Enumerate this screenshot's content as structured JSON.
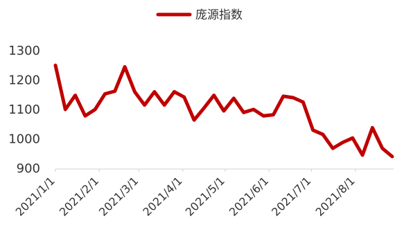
{
  "chart_data": {
    "type": "line",
    "title": "",
    "xlabel": "",
    "ylabel": "",
    "ylim": [
      900,
      1300
    ],
    "yticks": [
      "900",
      "1000",
      "1100",
      "1200",
      "1300"
    ],
    "xticks": [
      "2021/1/1",
      "2021/2/1",
      "2021/3/1",
      "2021/4/1",
      "2021/5/1",
      "2021/6/1",
      "2021/7/1",
      "2021/8/1"
    ],
    "legend": {
      "position": "top-center"
    },
    "grid": false,
    "series": [
      {
        "name": "庞源指数",
        "color": "#c00000",
        "x": [
          "2021/1/1",
          "2021/1/8",
          "2021/1/15",
          "2021/1/22",
          "2021/1/29",
          "2021/2/5",
          "2021/2/12",
          "2021/2/19",
          "2021/2/26",
          "2021/3/5",
          "2021/3/12",
          "2021/3/19",
          "2021/3/26",
          "2021/4/2",
          "2021/4/9",
          "2021/4/16",
          "2021/4/23",
          "2021/4/30",
          "2021/5/7",
          "2021/5/14",
          "2021/5/21",
          "2021/5/28",
          "2021/6/4",
          "2021/6/11",
          "2021/6/18",
          "2021/6/25",
          "2021/7/2",
          "2021/7/9",
          "2021/7/16",
          "2021/7/23",
          "2021/7/30",
          "2021/8/6",
          "2021/8/13",
          "2021/8/20",
          "2021/8/27"
        ],
        "values": [
          1250,
          1100,
          1148,
          1078,
          1100,
          1153,
          1162,
          1245,
          1160,
          1115,
          1160,
          1115,
          1160,
          1142,
          1064,
          1105,
          1148,
          1095,
          1138,
          1090,
          1100,
          1078,
          1082,
          1145,
          1140,
          1125,
          1030,
          1015,
          968,
          988,
          1003,
          945,
          1038,
          968,
          940
        ]
      }
    ]
  }
}
